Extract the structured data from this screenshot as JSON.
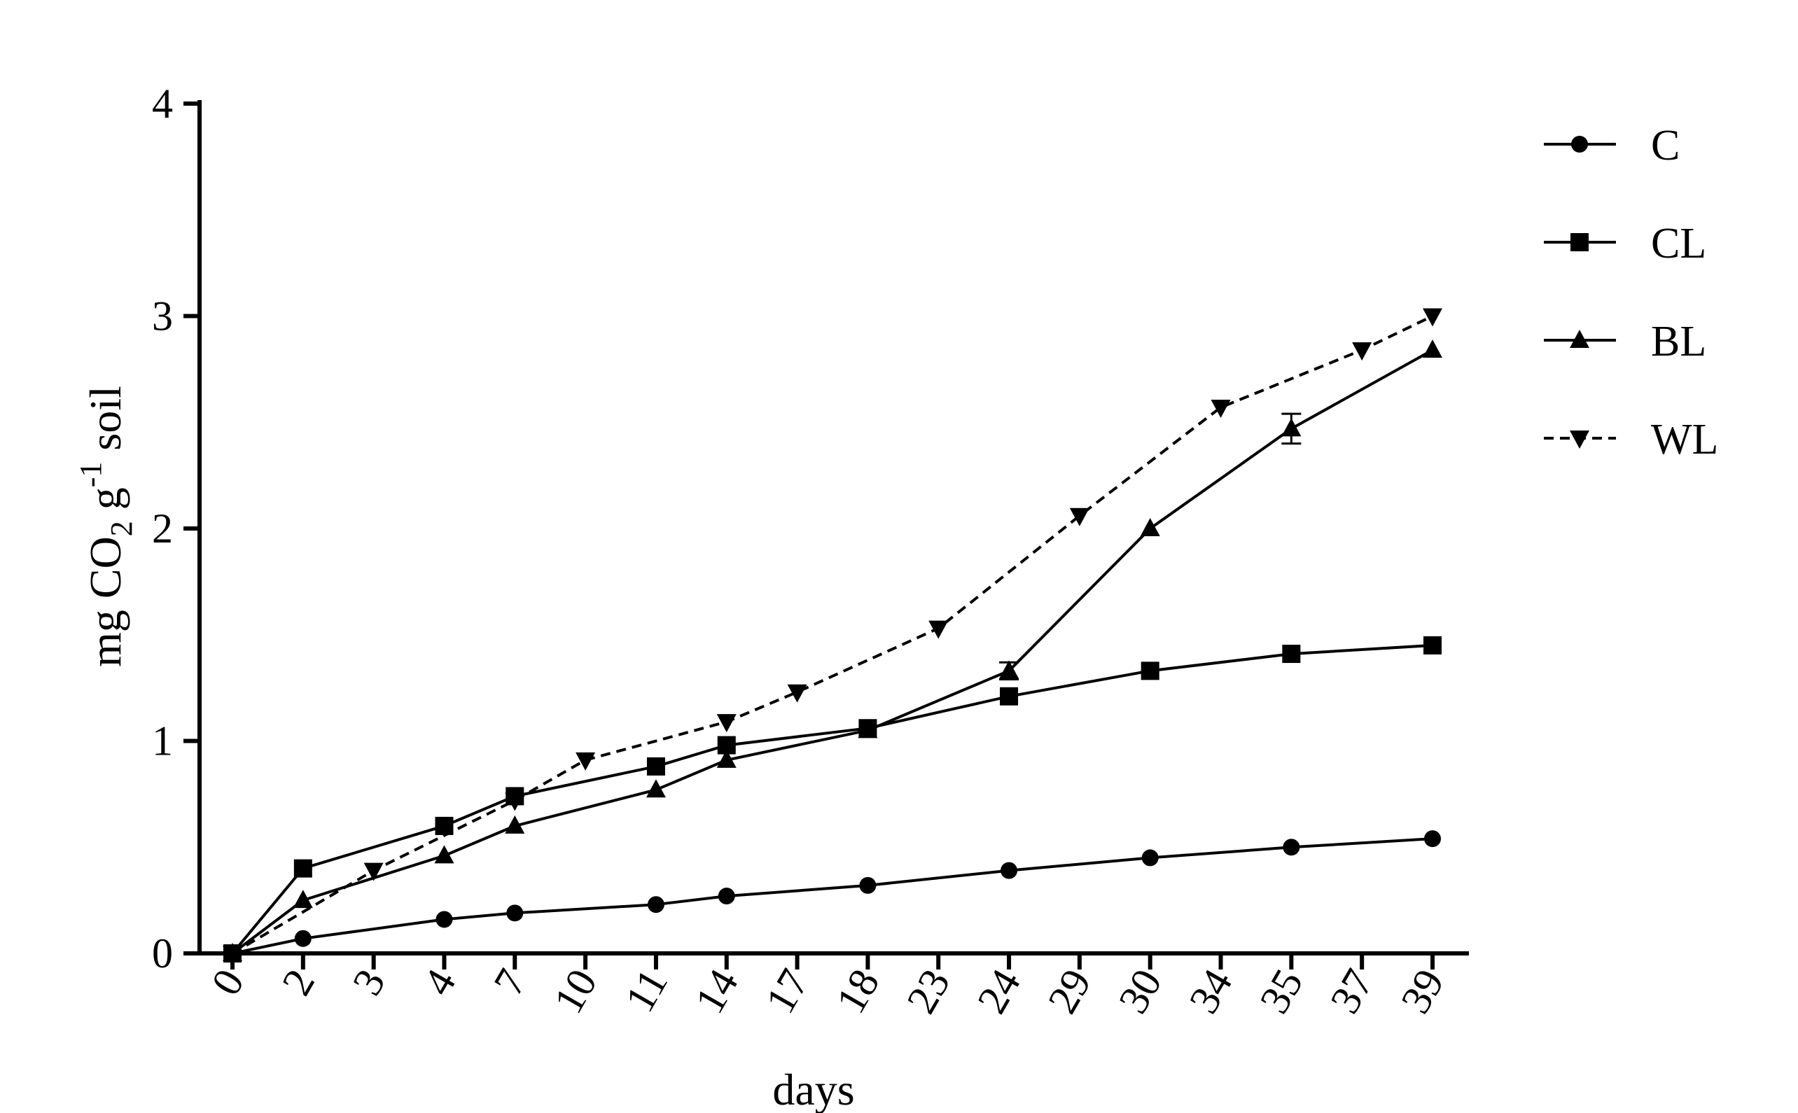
{
  "chart_data": {
    "type": "line",
    "title": "",
    "xlabel": "days",
    "ylabel": {
      "main": "mg CO",
      "sub": "2",
      "mid": " g",
      "sup": "-1",
      "end": " soil"
    },
    "categories": [
      "0",
      "2",
      "3",
      "4",
      "7",
      "10",
      "11",
      "14",
      "17",
      "18",
      "23",
      "24",
      "29",
      "30",
      "34",
      "35",
      "37",
      "39"
    ],
    "ylim": [
      0,
      4
    ],
    "yticks": [
      "0",
      "1",
      "2",
      "3",
      "4"
    ],
    "grid": false,
    "legend_position": "top-right",
    "series": [
      {
        "name": "C",
        "marker": "circle",
        "dash": "solid",
        "points": [
          {
            "x": "0",
            "y": 0
          },
          {
            "x": "2",
            "y": 0.07
          },
          {
            "x": "4",
            "y": 0.16
          },
          {
            "x": "7",
            "y": 0.19
          },
          {
            "x": "11",
            "y": 0.23
          },
          {
            "x": "14",
            "y": 0.27
          },
          {
            "x": "18",
            "y": 0.32
          },
          {
            "x": "24",
            "y": 0.39
          },
          {
            "x": "30",
            "y": 0.45
          },
          {
            "x": "35",
            "y": 0.5
          },
          {
            "x": "39",
            "y": 0.54
          }
        ]
      },
      {
        "name": "CL",
        "marker": "square",
        "dash": "solid",
        "points": [
          {
            "x": "0",
            "y": 0
          },
          {
            "x": "2",
            "y": 0.4
          },
          {
            "x": "4",
            "y": 0.6
          },
          {
            "x": "7",
            "y": 0.74
          },
          {
            "x": "11",
            "y": 0.88
          },
          {
            "x": "14",
            "y": 0.98
          },
          {
            "x": "18",
            "y": 1.06
          },
          {
            "x": "24",
            "y": 1.21
          },
          {
            "x": "30",
            "y": 1.33
          },
          {
            "x": "35",
            "y": 1.41
          },
          {
            "x": "39",
            "y": 1.45
          }
        ]
      },
      {
        "name": "BL",
        "marker": "triangle-up",
        "dash": "solid",
        "points": [
          {
            "x": "0",
            "y": 0
          },
          {
            "x": "2",
            "y": 0.25
          },
          {
            "x": "4",
            "y": 0.46
          },
          {
            "x": "7",
            "y": 0.6
          },
          {
            "x": "11",
            "y": 0.77
          },
          {
            "x": "14",
            "y": 0.91
          },
          {
            "x": "18",
            "y": 1.05
          },
          {
            "x": "24",
            "y": 1.33,
            "err": 0.04
          },
          {
            "x": "30",
            "y": 2.0
          },
          {
            "x": "35",
            "y": 2.47,
            "err": 0.07
          },
          {
            "x": "39",
            "y": 2.84
          }
        ]
      },
      {
        "name": "WL",
        "marker": "triangle-down",
        "dash": "dashed",
        "points": [
          {
            "x": "0",
            "y": 0
          },
          {
            "x": "3",
            "y": 0.39
          },
          {
            "x": "7",
            "y": 0.72
          },
          {
            "x": "10",
            "y": 0.91
          },
          {
            "x": "14",
            "y": 1.09
          },
          {
            "x": "17",
            "y": 1.23
          },
          {
            "x": "23",
            "y": 1.53
          },
          {
            "x": "29",
            "y": 2.06
          },
          {
            "x": "34",
            "y": 2.57
          },
          {
            "x": "37",
            "y": 2.84
          },
          {
            "x": "39",
            "y": 3.0
          }
        ]
      }
    ]
  }
}
